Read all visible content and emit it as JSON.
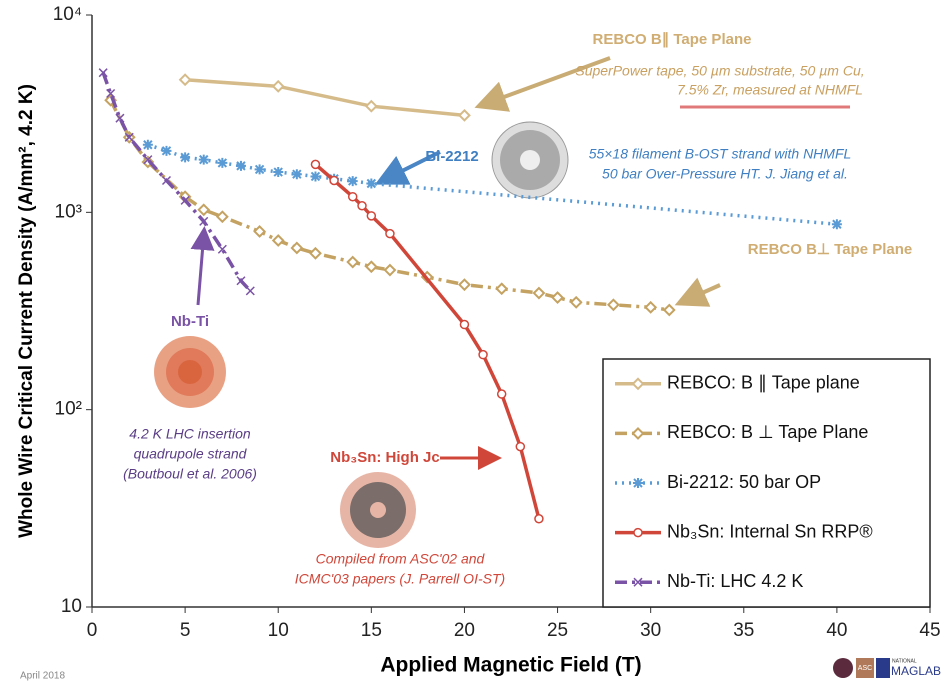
{
  "chart_data": {
    "type": "line",
    "xlabel": "Applied Magnetic Field (T)",
    "ylabel": "Whole Wire Critical Current Density (A/mm², 4.2 K)",
    "xlim": [
      0,
      45
    ],
    "xticks": [
      0,
      5,
      10,
      15,
      20,
      25,
      30,
      35,
      40,
      45
    ],
    "ylim": [
      10,
      10000
    ],
    "yscale": "log",
    "yticks": [
      10,
      {
        "value": 100,
        "label": "10²"
      },
      {
        "value": 1000,
        "label": "10³"
      },
      {
        "value": 10000,
        "label": "10⁴"
      }
    ],
    "legend": "lower right",
    "series": [
      {
        "name": "REBCO: B ∥ Tape plane",
        "color": "#d6bb8a",
        "linestyle": "solid",
        "marker": "diamond",
        "x": [
          5,
          10,
          15,
          20
        ],
        "values": [
          4700,
          4350,
          3450,
          3100
        ]
      },
      {
        "name": "REBCO: B ⊥ Tape Plane",
        "color": "#c4a261",
        "linestyle": "dashdot",
        "marker": "diamond",
        "x": [
          1,
          2,
          3,
          5,
          6,
          7,
          9,
          10,
          11,
          12,
          14,
          15,
          16,
          18,
          20,
          22,
          24,
          25,
          26,
          28,
          30,
          31
        ],
        "values": [
          3700,
          2400,
          1800,
          1200,
          1030,
          950,
          800,
          720,
          660,
          620,
          560,
          530,
          510,
          470,
          430,
          410,
          390,
          370,
          350,
          340,
          330,
          320
        ]
      },
      {
        "name": "Bi-2212: 50 bar OP",
        "color": "#5b9bd5",
        "linestyle": "dotted",
        "marker": "asterisk",
        "x": [
          3,
          4,
          5,
          6,
          7,
          8,
          9,
          10,
          11,
          12,
          13,
          14,
          15,
          40
        ],
        "values": [
          2200,
          2050,
          1900,
          1850,
          1780,
          1720,
          1650,
          1600,
          1560,
          1520,
          1480,
          1440,
          1400,
          870
        ]
      },
      {
        "name": "Nb₃Sn: Internal Sn RRP®",
        "color": "#d0473a",
        "linestyle": "solid",
        "marker": "circle",
        "x": [
          12,
          13,
          14,
          14.5,
          15,
          16,
          20,
          21,
          22,
          23,
          24
        ],
        "values": [
          1750,
          1450,
          1200,
          1080,
          960,
          780,
          270,
          190,
          120,
          65,
          28
        ]
      },
      {
        "name": "Nb-Ti: LHC 4.2 K",
        "color": "#7a52a6",
        "linestyle": "dashdot",
        "marker": "x",
        "x": [
          0.6,
          1,
          1.5,
          2,
          3,
          4,
          5,
          6,
          7,
          8,
          8.5
        ],
        "values": [
          5100,
          4000,
          3000,
          2400,
          1850,
          1450,
          1150,
          900,
          650,
          450,
          400
        ]
      }
    ],
    "annotations": [
      "REBCO B∥ Tape Plane",
      "SuperPower tape, 50 µm substrate, 50 µm Cu,",
      "7.5% Zr, measured at NHMFL",
      "Bi-2212",
      "55×18 filament B-OST strand with  NHMFL",
      "50 bar Over-Pressure HT. J. Jiang et al.",
      "REBCO B⊥ Tape Plane",
      "Nb-Ti",
      "4.2 K LHC insertion",
      "quadrupole strand",
      "(Boutboul et al. 2006)",
      "Nb₃Sn: High Jc",
      "Compiled from ASC'02 and",
      "ICMC'03 papers (J. Parrell OI-ST)"
    ],
    "footer": {
      "date": "April 2018",
      "logo": [
        "ASC",
        "NATIONAL",
        "MAGLAB"
      ]
    }
  }
}
